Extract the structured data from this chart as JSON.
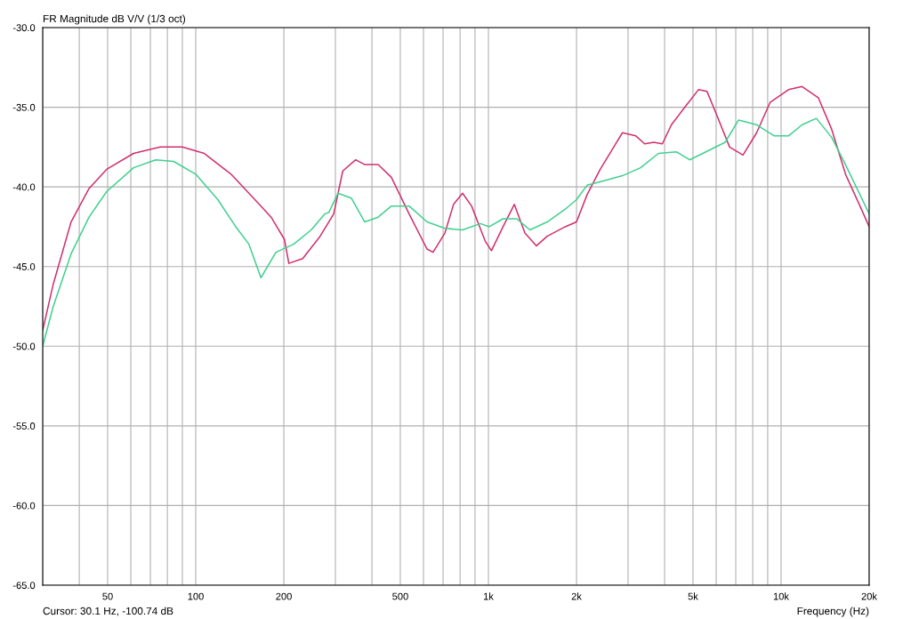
{
  "chart_data": {
    "type": "line",
    "title": "FR Magnitude dB V/V (1/3 oct)",
    "xlabel": "Frequency (Hz)",
    "annotations": [
      "Cursor: 30.1 Hz, -100.74 dB"
    ],
    "log": "x",
    "grid": true,
    "marker": "none",
    "line_style": "solid",
    "xlim": [
      30,
      20000
    ],
    "ylim": [
      -65,
      -30
    ],
    "xticks": [
      {
        "value": 30,
        "label": null
      },
      {
        "value": 40,
        "label": null
      },
      50,
      {
        "value": 60,
        "label": null
      },
      {
        "value": 70,
        "label": null
      },
      {
        "value": 80,
        "label": null
      },
      {
        "value": 90,
        "label": null
      },
      100,
      200,
      {
        "value": 300,
        "label": null
      },
      {
        "value": 400,
        "label": null
      },
      500,
      {
        "value": 600,
        "label": null
      },
      {
        "value": 700,
        "label": null
      },
      {
        "value": 800,
        "label": null
      },
      {
        "value": 900,
        "label": null
      },
      {
        "value": 1000,
        "label": "1k"
      },
      {
        "value": 2000,
        "label": "2k"
      },
      {
        "value": 3000,
        "label": null
      },
      {
        "value": 4000,
        "label": null
      },
      {
        "value": 5000,
        "label": "5k"
      },
      {
        "value": 6000,
        "label": null
      },
      {
        "value": 7000,
        "label": null
      },
      {
        "value": 8000,
        "label": null
      },
      {
        "value": 9000,
        "label": null
      },
      {
        "value": 10000,
        "label": "10k"
      },
      {
        "value": 20000,
        "label": "20k"
      }
    ],
    "yticks": [
      {
        "value": -65,
        "label": "-65.0"
      },
      {
        "value": -60,
        "label": "-60.0"
      },
      {
        "value": -55,
        "label": "-55.0"
      },
      {
        "value": -50,
        "label": "-50.0"
      },
      {
        "value": -45,
        "label": "-45.0"
      },
      {
        "value": -40,
        "label": "-40.0"
      },
      {
        "value": -35,
        "label": "-35.0"
      },
      {
        "value": -30,
        "label": "-30.0"
      }
    ],
    "series": [
      {
        "color": "#d0306f",
        "x": [
          30,
          32.6,
          37.5,
          43.2,
          49.6,
          61.3,
          75.6,
          90,
          107,
          132,
          163,
          181,
          201,
          208,
          232,
          266,
          296,
          318,
          352,
          378,
          420,
          466,
          536,
          617,
          647,
          710,
          760,
          816,
          876,
          975,
          1024,
          1122,
          1226,
          1333,
          1459,
          1588,
          1830,
          2000,
          2172,
          2410,
          2680,
          2870,
          3190,
          3420,
          3670,
          3930,
          4220,
          4690,
          5220,
          5580,
          6000,
          6670,
          7410,
          8250,
          9170,
          10600,
          11800,
          13400,
          14900,
          16600,
          18500,
          20000
        ],
        "values": [
          -49.0,
          -46.1,
          -42.2,
          -40.1,
          -38.9,
          -37.9,
          -37.5,
          -37.5,
          -37.9,
          -39.2,
          -41.0,
          -41.9,
          -43.3,
          -44.8,
          -44.5,
          -43.1,
          -41.7,
          -39.0,
          -38.3,
          -38.6,
          -38.6,
          -39.4,
          -41.7,
          -43.9,
          -44.1,
          -42.9,
          -41.1,
          -40.4,
          -41.2,
          -43.4,
          -44.0,
          -42.5,
          -41.1,
          -42.9,
          -43.7,
          -43.1,
          -42.5,
          -42.2,
          -40.5,
          -38.9,
          -37.5,
          -36.6,
          -36.8,
          -37.3,
          -37.2,
          -37.3,
          -36.1,
          -35.0,
          -33.9,
          -34.0,
          -35.4,
          -37.5,
          -38.0,
          -36.6,
          -34.7,
          -33.9,
          -33.7,
          -34.4,
          -36.4,
          -39.2,
          -41.1,
          -42.5
        ]
      },
      {
        "color": "#40d090",
        "x": [
          30,
          32.6,
          37.5,
          43.2,
          49.6,
          61.3,
          73,
          84,
          100,
          119,
          137,
          152,
          167,
          188,
          216,
          248,
          276,
          285,
          306,
          340,
          378,
          420,
          466,
          536,
          617,
          710,
          816,
          939,
          1007,
          1122,
          1250,
          1386,
          1588,
          1830,
          2000,
          2172,
          2500,
          2870,
          3310,
          3810,
          4390,
          4870,
          5400,
          6440,
          7160,
          8250,
          9490,
          10600,
          11800,
          13200,
          14900,
          16600,
          20000
        ],
        "values": [
          -50.0,
          -47.5,
          -44.2,
          -41.9,
          -40.3,
          -38.8,
          -38.3,
          -38.4,
          -39.2,
          -40.8,
          -42.5,
          -43.6,
          -45.7,
          -44.1,
          -43.6,
          -42.7,
          -41.7,
          -41.6,
          -40.4,
          -40.7,
          -42.2,
          -41.9,
          -41.2,
          -41.2,
          -42.2,
          -42.6,
          -42.7,
          -42.3,
          -42.5,
          -42.0,
          -42.0,
          -42.7,
          -42.2,
          -41.4,
          -40.8,
          -39.9,
          -39.6,
          -39.3,
          -38.8,
          -37.9,
          -37.8,
          -38.3,
          -37.9,
          -37.2,
          -35.8,
          -36.1,
          -36.8,
          -36.8,
          -36.1,
          -35.7,
          -36.9,
          -38.6,
          -41.7
        ]
      }
    ]
  }
}
